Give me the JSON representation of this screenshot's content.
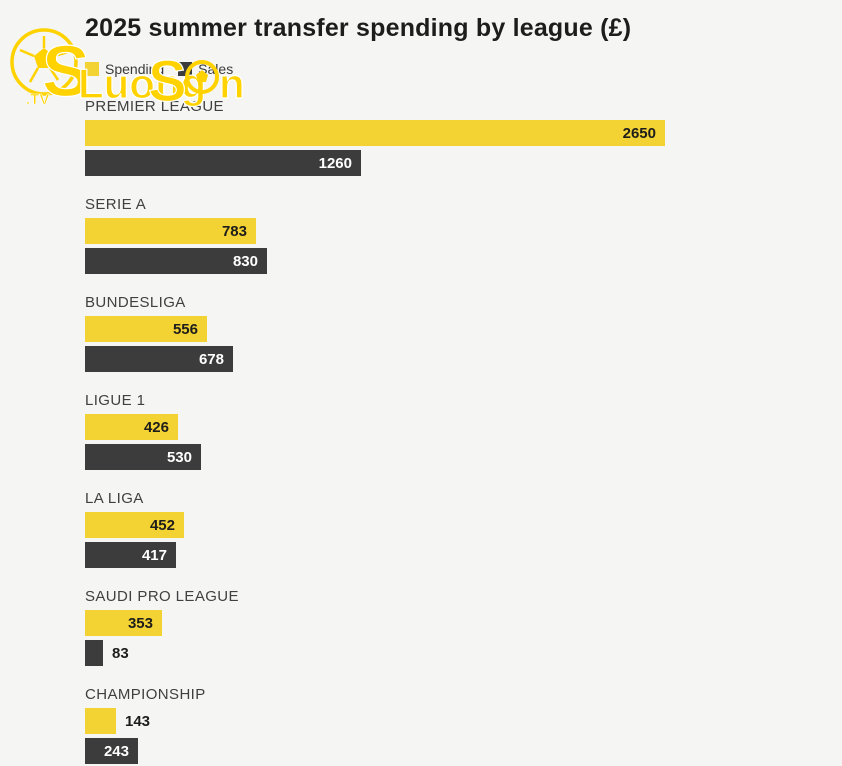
{
  "page": {
    "background": "#f5f5f4"
  },
  "header": {
    "title": "2025 summer transfer spending by league (£)"
  },
  "legend": {
    "items": [
      {
        "label": "Spending",
        "color": "#f3d233"
      },
      {
        "label": "Sales",
        "color": "#3c3c3c"
      }
    ]
  },
  "watermark": {
    "part1": "Luong",
    "part2": "S",
    "part3": "n",
    "tv": ".TV",
    "color": "#ffd200"
  },
  "chart_data": {
    "type": "bar",
    "orientation": "horizontal",
    "title": "2025 summer transfer spending by league (£)",
    "categories": [
      "PREMIER LEAGUE",
      "SERIE A",
      "BUNDESLIGA",
      "LIGUE 1",
      "LA LIGA",
      "SAUDI PRO LEAGUE",
      "CHAMPIONSHIP"
    ],
    "series": [
      {
        "name": "Spending",
        "color": "#f3d233",
        "values": [
          2650,
          783,
          556,
          426,
          452,
          353,
          143
        ]
      },
      {
        "name": "Sales",
        "color": "#3c3c3c",
        "values": [
          1260,
          830,
          678,
          530,
          417,
          83,
          243
        ]
      }
    ],
    "xlim": [
      0,
      2650
    ],
    "value_labels": true,
    "grid": false,
    "legend_position": "top-left"
  }
}
